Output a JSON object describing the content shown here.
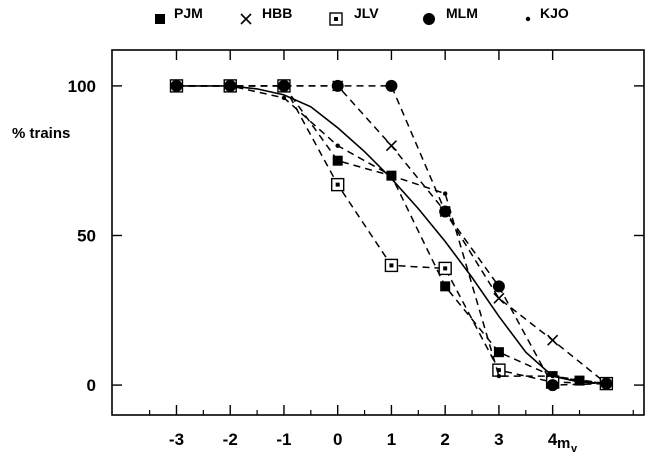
{
  "chart_data": {
    "type": "line",
    "xlabel": "m",
    "xlabel_subscript": "v",
    "ylabel": "% trains",
    "xlim": [
      -4.2,
      5.7
    ],
    "ylim": [
      -10,
      112
    ],
    "xticks": [
      -3,
      -2,
      -1,
      0,
      1,
      2,
      3,
      4
    ],
    "xtick_labels": [
      "-3",
      "-2",
      "-1",
      "0",
      "1",
      "2",
      "3",
      "4"
    ],
    "yticks": [
      0,
      50,
      100
    ],
    "ytick_labels": [
      "0",
      "50",
      "100"
    ],
    "grid": false,
    "legend_position": "top",
    "series": [
      {
        "name": "PJM",
        "marker": "filled-square",
        "dashed": true,
        "x": [
          -3,
          -2,
          -1,
          0,
          1,
          2,
          3,
          4,
          4.5,
          5
        ],
        "y": [
          100,
          100,
          100,
          75,
          70,
          33,
          11,
          3,
          1.5,
          0.5
        ]
      },
      {
        "name": "HBB",
        "marker": "cross",
        "dashed": true,
        "x": [
          -3,
          -2,
          -1,
          0,
          1,
          2,
          3,
          4,
          5
        ],
        "y": [
          100,
          100,
          100,
          100,
          80,
          58,
          29,
          15,
          0.5
        ]
      },
      {
        "name": "JLV",
        "marker": "open-square",
        "dashed": true,
        "x": [
          -3,
          -2,
          -1,
          0,
          1,
          2,
          3,
          4,
          5
        ],
        "y": [
          100,
          100,
          100,
          67,
          40,
          39,
          5,
          1,
          0.5
        ]
      },
      {
        "name": "MLM",
        "marker": "filled-circle",
        "dashed": true,
        "x": [
          -3,
          -2,
          -1,
          0,
          1,
          2,
          3,
          4,
          5
        ],
        "y": [
          100,
          100,
          100,
          100,
          100,
          58,
          33,
          0,
          0.5
        ]
      },
      {
        "name": "KJO",
        "marker": "dot",
        "dashed": true,
        "x": [
          -3,
          -2,
          -1,
          0,
          1,
          2,
          3,
          4,
          5
        ],
        "y": [
          100,
          100,
          96,
          80,
          70,
          64,
          3,
          3,
          0.5
        ]
      },
      {
        "name": "",
        "marker": "none",
        "dashed": false,
        "x": [
          -3,
          -2,
          -1.5,
          -1,
          -0.5,
          0,
          0.5,
          1,
          1.5,
          2,
          2.5,
          3,
          3.5,
          4,
          4.5,
          5
        ],
        "y": [
          100,
          100,
          99,
          97,
          93,
          86,
          78,
          69,
          59,
          48,
          36,
          23,
          11,
          3,
          1,
          0.5
        ]
      }
    ]
  }
}
